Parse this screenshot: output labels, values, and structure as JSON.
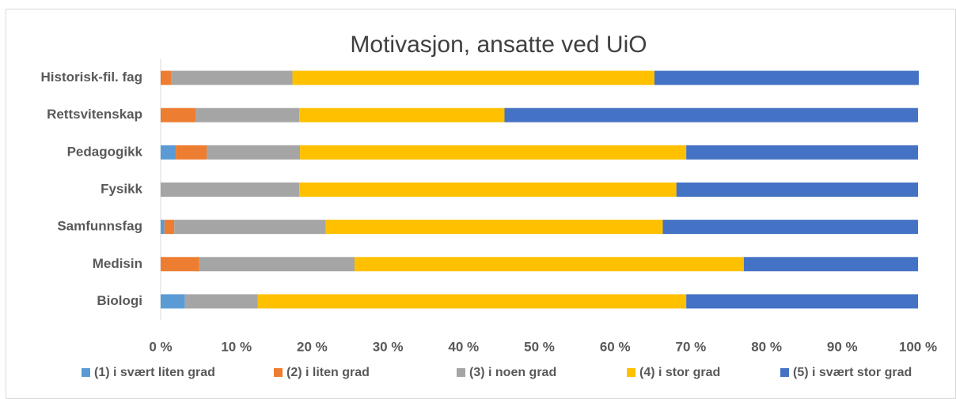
{
  "chart_data": {
    "type": "stacked_barh",
    "title": "Motivasjon, ansatte ved UiO",
    "categories": [
      "Historisk-fil. fag",
      "Rettsvitenskap",
      "Pedagogikk",
      "Fysikk",
      "Samfunnsfag",
      "Medisin",
      "Biologi"
    ],
    "series": [
      {
        "name": "(1) i svært liten grad",
        "color": "#5b9bd5",
        "values": [
          0,
          0,
          2.0,
          0,
          0.5,
          0,
          3.2
        ]
      },
      {
        "name": "(2) i liten grad",
        "color": "#ed7d31",
        "values": [
          1.4,
          4.6,
          4.1,
          0,
          1.3,
          5.1,
          0
        ]
      },
      {
        "name": "(3) i noen grad",
        "color": "#a5a5a5",
        "values": [
          16.0,
          13.7,
          12.3,
          18.3,
          20.0,
          20.5,
          9.6
        ]
      },
      {
        "name": "(4) i stor grad",
        "color": "#ffc000",
        "values": [
          47.8,
          27.1,
          51.0,
          49.8,
          44.5,
          51.4,
          56.6
        ]
      },
      {
        "name": "(5) i svært stor grad",
        "color": "#4472c4",
        "values": [
          34.9,
          54.6,
          30.6,
          31.9,
          33.7,
          23.0,
          30.6
        ]
      }
    ],
    "xlim": [
      0,
      100
    ],
    "xticks": [
      {
        "value": 0,
        "label": "0 %"
      },
      {
        "value": 10,
        "label": "10 %"
      },
      {
        "value": 20,
        "label": "20 %"
      },
      {
        "value": 30,
        "label": "30 %"
      },
      {
        "value": 40,
        "label": "40 %"
      },
      {
        "value": 50,
        "label": "50 %"
      },
      {
        "value": 60,
        "label": "60 %"
      },
      {
        "value": 70,
        "label": "70 %"
      },
      {
        "value": 80,
        "label": "80 %"
      },
      {
        "value": 90,
        "label": "90 %"
      },
      {
        "value": 100,
        "label": "100 %"
      }
    ],
    "grid": false,
    "legend": "bottom"
  }
}
